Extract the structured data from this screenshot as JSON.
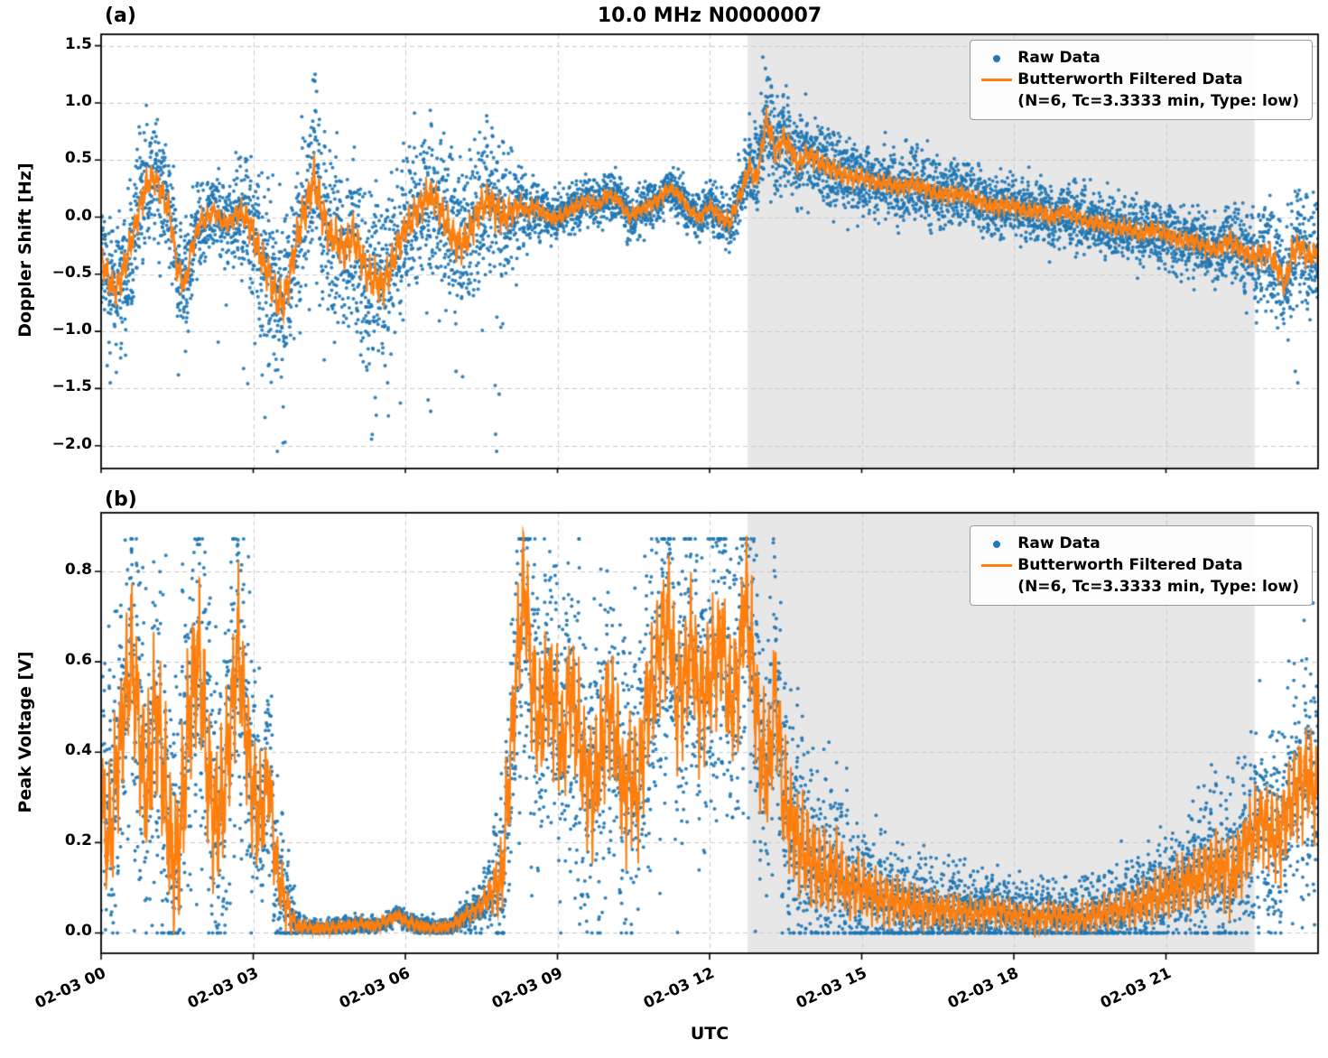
{
  "figure": {
    "title": "10.0 MHz N0000007",
    "panel_a_tag": "(a)",
    "panel_b_tag": "(b)",
    "xlabel": "UTC",
    "legend": {
      "raw_label": "Raw Data",
      "filtered_label": "Butterworth Filtered Data",
      "filtered_sublabel": "(N=6, Tc=3.3333 min, Type: low)"
    },
    "colors": {
      "raw": "#1f77b4",
      "filtered": "#ff7f0e",
      "shade": "#e7e7e7",
      "grid": "#c9c9c9",
      "spine": "#000000"
    }
  },
  "chart_data": [
    {
      "type": "scatter",
      "panel": "a",
      "title": "10.0 MHz N0000007",
      "xlabel": "UTC",
      "ylabel": "Doppler Shift [Hz]",
      "xlim_hours": [
        0,
        24
      ],
      "ylim": [
        -2.2,
        1.6
      ],
      "x_ticks_hours": [
        0,
        3,
        6,
        9,
        12,
        15,
        18,
        21
      ],
      "x_tick_labels": [
        "02-03 00",
        "02-03 03",
        "02-03 06",
        "02-03 09",
        "02-03 12",
        "02-03 15",
        "02-03 18",
        "02-03 21"
      ],
      "y_ticks": [
        1.5,
        1.0,
        0.5,
        0.0,
        -0.5,
        -1.0,
        -1.5,
        -2.0
      ],
      "y_tick_labels": [
        "1.5",
        "1.0",
        "0.5",
        "0.0",
        "−0.5",
        "−1.0",
        "−1.5",
        "−2.0"
      ],
      "grid": true,
      "legend_position": "upper right",
      "shaded_region_hours": [
        12.75,
        22.75
      ],
      "raw_value_range": [
        -2.05,
        1.42
      ],
      "series": [
        {
          "name": "Raw Data",
          "type": "scatter",
          "color": "#1f77b4"
        },
        {
          "name": "Butterworth Filtered Data (N=6, Tc=3.3333 min, Type: low)",
          "type": "line",
          "color": "#ff7f0e",
          "x_hours": [
            0,
            0.15,
            0.3,
            0.45,
            0.6,
            0.75,
            0.9,
            1.05,
            1.2,
            1.35,
            1.5,
            1.65,
            1.8,
            1.95,
            2.1,
            2.25,
            2.4,
            2.55,
            2.7,
            2.85,
            3.0,
            3.15,
            3.3,
            3.45,
            3.6,
            3.75,
            3.9,
            4.05,
            4.2,
            4.35,
            4.5,
            4.65,
            4.8,
            4.95,
            5.1,
            5.25,
            5.4,
            5.55,
            5.7,
            5.85,
            6.0,
            6.15,
            6.3,
            6.45,
            6.6,
            6.75,
            6.9,
            7.05,
            7.2,
            7.35,
            7.5,
            7.65,
            7.8,
            7.95,
            8.1,
            8.25,
            8.4,
            8.55,
            8.7,
            8.85,
            9.0,
            9.2,
            9.4,
            9.6,
            9.8,
            10.0,
            10.2,
            10.4,
            10.6,
            10.8,
            11.0,
            11.2,
            11.4,
            11.6,
            11.8,
            12.0,
            12.2,
            12.4,
            12.6,
            12.8,
            12.9,
            13.0,
            13.1,
            13.2,
            13.3,
            13.45,
            13.6,
            13.75,
            13.9,
            14.1,
            14.3,
            14.5,
            14.75,
            15.0,
            15.25,
            15.5,
            15.75,
            16.0,
            16.25,
            16.5,
            16.75,
            17.0,
            17.25,
            17.5,
            17.75,
            18.0,
            18.25,
            18.5,
            18.75,
            19.0,
            19.25,
            19.5,
            19.75,
            20.0,
            20.25,
            20.5,
            20.75,
            21.0,
            21.25,
            21.5,
            21.75,
            22.0,
            22.25,
            22.5,
            22.75,
            23.0,
            23.2,
            23.35,
            23.5,
            23.65,
            23.8,
            24.0
          ],
          "y": [
            -0.35,
            -0.55,
            -0.65,
            -0.45,
            -0.2,
            0.05,
            0.3,
            0.35,
            0.2,
            0.05,
            -0.45,
            -0.6,
            -0.25,
            -0.05,
            0.0,
            0.05,
            -0.05,
            -0.05,
            0.05,
            0.0,
            -0.15,
            -0.35,
            -0.5,
            -0.7,
            -0.75,
            -0.45,
            -0.1,
            0.1,
            0.35,
            0.05,
            -0.15,
            -0.2,
            -0.3,
            -0.15,
            -0.3,
            -0.5,
            -0.55,
            -0.6,
            -0.45,
            -0.25,
            -0.1,
            0.0,
            0.1,
            0.2,
            0.15,
            0.0,
            -0.15,
            -0.25,
            -0.2,
            -0.05,
            0.1,
            0.15,
            0.05,
            0.0,
            0.05,
            0.1,
            0.05,
            0.1,
            0.05,
            0.0,
            0.0,
            0.05,
            0.1,
            0.15,
            0.1,
            0.2,
            0.15,
            0.0,
            0.05,
            0.1,
            0.15,
            0.25,
            0.2,
            0.05,
            0.0,
            0.1,
            0.0,
            -0.05,
            0.2,
            0.45,
            0.3,
            0.5,
            0.85,
            0.75,
            0.55,
            0.7,
            0.6,
            0.45,
            0.55,
            0.5,
            0.45,
            0.4,
            0.35,
            0.35,
            0.3,
            0.3,
            0.25,
            0.3,
            0.25,
            0.2,
            0.2,
            0.2,
            0.15,
            0.1,
            0.1,
            0.1,
            0.05,
            0.05,
            0.0,
            0.05,
            0.0,
            -0.05,
            -0.05,
            -0.1,
            -0.1,
            -0.15,
            -0.1,
            -0.15,
            -0.2,
            -0.2,
            -0.25,
            -0.3,
            -0.2,
            -0.3,
            -0.35,
            -0.3,
            -0.45,
            -0.6,
            -0.3,
            -0.25,
            -0.35,
            -0.3
          ]
        }
      ],
      "raw_scatter_spread": {
        "x_hours": [
          0,
          0.5,
          1,
          1.5,
          2,
          2.5,
          3,
          3.5,
          4,
          4.2,
          4.5,
          5,
          5.5,
          6,
          6.5,
          7,
          7.5,
          7.9,
          8.3,
          9,
          10,
          11,
          12,
          12.6,
          13.1,
          14,
          15,
          16,
          17,
          18,
          19,
          20,
          21,
          22,
          23,
          23.5,
          24
        ],
        "sigma": [
          0.25,
          0.3,
          0.25,
          0.25,
          0.18,
          0.15,
          0.3,
          0.35,
          0.35,
          0.4,
          0.35,
          0.35,
          0.35,
          0.3,
          0.3,
          0.35,
          0.3,
          0.35,
          0.15,
          0.1,
          0.1,
          0.1,
          0.1,
          0.15,
          0.22,
          0.18,
          0.15,
          0.15,
          0.13,
          0.13,
          0.13,
          0.13,
          0.13,
          0.15,
          0.2,
          0.25,
          0.2
        ]
      },
      "raw_extreme_points": [
        [
          0.12,
          -1.3
        ],
        [
          0.18,
          -1.45
        ],
        [
          3.3,
          -1.3
        ],
        [
          4.18,
          1.2
        ],
        [
          4.22,
          1.25
        ],
        [
          4.25,
          1.1
        ],
        [
          4.4,
          -1.25
        ],
        [
          5.6,
          -1.3
        ],
        [
          5.65,
          -1.45
        ],
        [
          6.45,
          -1.6
        ],
        [
          6.5,
          -1.7
        ],
        [
          7.0,
          -1.35
        ],
        [
          7.78,
          -1.9
        ],
        [
          7.8,
          -2.05
        ],
        [
          7.85,
          -1.55
        ],
        [
          13.05,
          1.4
        ],
        [
          13.1,
          1.3
        ],
        [
          13.15,
          1.22
        ],
        [
          23.55,
          -1.35
        ],
        [
          23.6,
          -1.45
        ]
      ]
    },
    {
      "type": "scatter",
      "panel": "b",
      "title": "",
      "xlabel": "UTC",
      "ylabel": "Peak Voltage [V]",
      "xlim_hours": [
        0,
        24
      ],
      "ylim": [
        -0.045,
        0.93
      ],
      "x_ticks_hours": [
        0,
        3,
        6,
        9,
        12,
        15,
        18,
        21
      ],
      "x_tick_labels": [
        "02-03 00",
        "02-03 03",
        "02-03 06",
        "02-03 09",
        "02-03 12",
        "02-03 15",
        "02-03 18",
        "02-03 21"
      ],
      "y_ticks": [
        0.8,
        0.6,
        0.4,
        0.2,
        0.0
      ],
      "y_tick_labels": [
        "0.8",
        "0.6",
        "0.4",
        "0.2",
        "0.0"
      ],
      "grid": true,
      "legend_position": "upper right",
      "shaded_region_hours": [
        12.75,
        22.75
      ],
      "raw_value_range": [
        0.0,
        0.872
      ],
      "series": [
        {
          "name": "Raw Data",
          "type": "scatter",
          "color": "#1f77b4"
        },
        {
          "name": "Butterworth Filtered Data (N=6, Tc=3.3333 min, Type: low)",
          "type": "line",
          "color": "#ff7f0e",
          "x_hours": [
            0,
            0.15,
            0.3,
            0.45,
            0.6,
            0.75,
            0.9,
            1.05,
            1.2,
            1.35,
            1.5,
            1.65,
            1.8,
            1.95,
            2.1,
            2.25,
            2.4,
            2.55,
            2.7,
            2.85,
            3.0,
            3.15,
            3.3,
            3.45,
            3.6,
            3.75,
            3.9,
            4.2,
            4.5,
            4.8,
            5.1,
            5.4,
            5.7,
            5.85,
            6.0,
            6.3,
            6.6,
            6.9,
            7.2,
            7.5,
            7.7,
            7.9,
            8.05,
            8.2,
            8.35,
            8.5,
            8.65,
            8.8,
            8.95,
            9.1,
            9.25,
            9.4,
            9.55,
            9.7,
            9.85,
            10.0,
            10.15,
            10.3,
            10.45,
            10.6,
            10.75,
            10.9,
            11.05,
            11.2,
            11.35,
            11.5,
            11.65,
            11.8,
            11.95,
            12.1,
            12.25,
            12.4,
            12.55,
            12.7,
            12.85,
            13.0,
            13.15,
            13.3,
            13.45,
            13.6,
            13.75,
            13.9,
            14.1,
            14.3,
            14.5,
            14.7,
            15.0,
            15.3,
            15.6,
            16.0,
            16.4,
            16.8,
            17.2,
            17.6,
            18.0,
            18.4,
            18.8,
            19.2,
            19.6,
            20.0,
            20.4,
            20.8,
            21.2,
            21.6,
            22.0,
            22.3,
            22.6,
            22.9,
            23.2,
            23.5,
            23.8,
            24.0
          ],
          "y": [
            0.3,
            0.2,
            0.35,
            0.5,
            0.62,
            0.45,
            0.3,
            0.5,
            0.4,
            0.2,
            0.15,
            0.35,
            0.55,
            0.62,
            0.35,
            0.25,
            0.3,
            0.45,
            0.65,
            0.45,
            0.3,
            0.25,
            0.35,
            0.15,
            0.08,
            0.03,
            0.015,
            0.01,
            0.01,
            0.015,
            0.02,
            0.015,
            0.03,
            0.04,
            0.025,
            0.015,
            0.01,
            0.015,
            0.04,
            0.06,
            0.09,
            0.12,
            0.35,
            0.6,
            0.78,
            0.55,
            0.45,
            0.55,
            0.5,
            0.4,
            0.55,
            0.45,
            0.35,
            0.3,
            0.4,
            0.5,
            0.45,
            0.3,
            0.35,
            0.3,
            0.5,
            0.55,
            0.65,
            0.7,
            0.5,
            0.55,
            0.65,
            0.5,
            0.55,
            0.6,
            0.65,
            0.5,
            0.55,
            0.75,
            0.6,
            0.4,
            0.35,
            0.55,
            0.3,
            0.25,
            0.2,
            0.18,
            0.15,
            0.12,
            0.15,
            0.1,
            0.1,
            0.08,
            0.07,
            0.06,
            0.05,
            0.05,
            0.04,
            0.05,
            0.04,
            0.03,
            0.04,
            0.03,
            0.04,
            0.05,
            0.06,
            0.08,
            0.1,
            0.12,
            0.15,
            0.12,
            0.2,
            0.25,
            0.2,
            0.3,
            0.35,
            0.3
          ]
        }
      ],
      "raw_scatter_spread": {
        "x_hours": [
          0,
          1,
          2,
          3,
          3.5,
          3.9,
          5,
          7,
          7.6,
          8,
          8.3,
          9,
          10,
          11,
          12,
          13,
          13.8,
          14.5,
          15,
          16,
          17,
          18,
          19,
          20,
          21,
          22,
          23,
          24
        ],
        "sigma": [
          0.15,
          0.18,
          0.18,
          0.15,
          0.08,
          0.01,
          0.008,
          0.01,
          0.03,
          0.12,
          0.15,
          0.15,
          0.15,
          0.15,
          0.15,
          0.15,
          0.12,
          0.08,
          0.07,
          0.05,
          0.04,
          0.035,
          0.035,
          0.04,
          0.06,
          0.08,
          0.1,
          0.12
        ]
      },
      "raw_extreme_points": [
        [
          0.6,
          0.85
        ],
        [
          1.9,
          0.86
        ],
        [
          2.7,
          0.87
        ],
        [
          8.35,
          0.87
        ],
        [
          11.2,
          0.86
        ],
        [
          12.8,
          0.85
        ],
        [
          23.9,
          0.73
        ]
      ]
    }
  ]
}
